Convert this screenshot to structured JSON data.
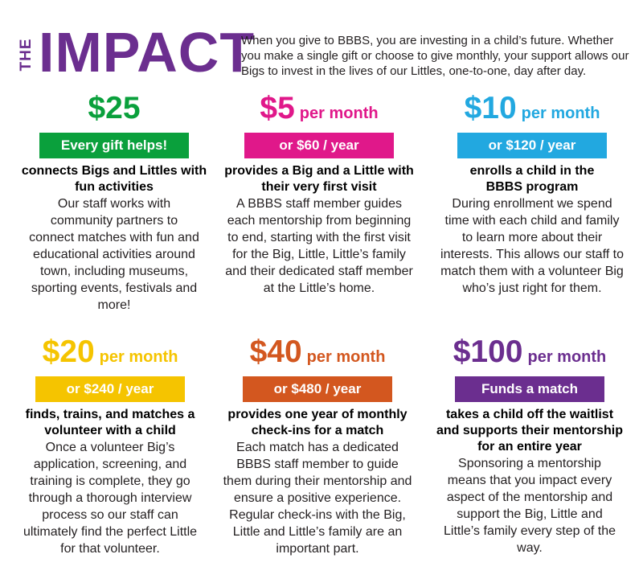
{
  "header": {
    "the": "THE",
    "impact": "IMPACT",
    "intro": "When you give to BBBS, you are investing in a child’s future. Whether you make a single gift or choose to give monthly, your support allows our Bigs to invest in the lives of our Littles, one-to-one, day after day."
  },
  "cards": [
    {
      "amount": "$25",
      "unit": "",
      "bar": "Every gift helps!",
      "color": "#0aa03c",
      "headline": "connects Bigs and Littles with fun activities",
      "desc": "Our staff works with community partners to connect matches with fun and educational activities around town, including museums, sporting events, festivals and more!"
    },
    {
      "amount": "$5",
      "unit": "per month",
      "bar": "or $60 / year",
      "color": "#e0188a",
      "headline": "provides a Big and a Little with their very first visit",
      "desc": "A BBBS staff member guides each mentorship from beginning to end, starting with the first visit for the Big, Little, Little’s family and their dedicated staff member at the Little’s home."
    },
    {
      "amount": "$10",
      "unit": "per month",
      "bar": "or $120 / year",
      "color": "#22a8e0",
      "headline": "enrolls a child in the BBBS program",
      "desc": "During enrollment we spend time with each child and family to learn more about their interests. This allows our staff to match them with a volunteer Big who’s just right for them."
    },
    {
      "amount": "$20",
      "unit": "per month",
      "bar": "or $240 / year",
      "color": "#f5c400",
      "headline": "finds, trains, and matches a volunteer with a child",
      "desc": "Once a volunteer Big’s application, screening, and training is complete, they go through a thorough interview process so our staff can ultimately find the perfect Little for that volunteer."
    },
    {
      "amount": "$40",
      "unit": "per month",
      "bar": "or $480 / year",
      "color": "#d3571f",
      "headline": "provides one year of monthly check-ins for a match",
      "desc": "Each match has a dedicated BBBS staff member to guide them during their mentorship and ensure a positive experience. Regular check-ins with the Big, Little and Little’s family are an important part."
    },
    {
      "amount": "$100",
      "unit": "per month",
      "bar": "Funds a match",
      "color": "#6b2e8f",
      "headline": "takes a child off the waitlist and supports their mentorship for an entire year",
      "desc": "Sponsoring a mentorship means that you impact every aspect of the mentorship and support the Big, Little and Little’s family every step of the way."
    }
  ]
}
